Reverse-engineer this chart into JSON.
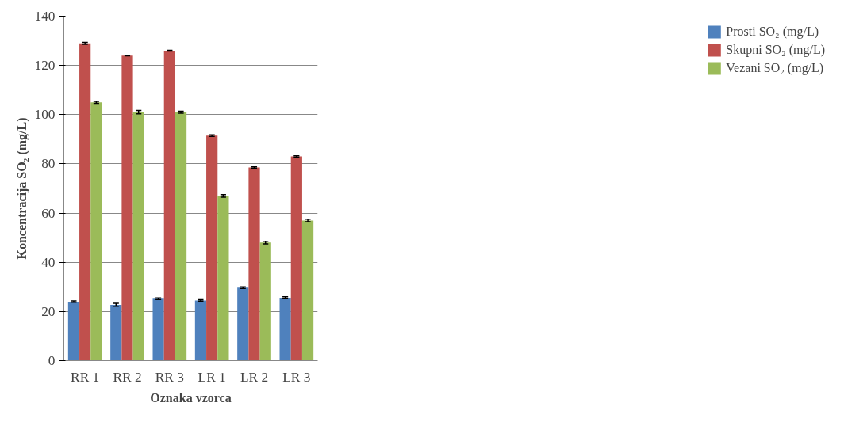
{
  "chart_data": {
    "type": "bar",
    "xlabel": "Oznaka vzorca",
    "ylabel": "Koncentracija SO₂ (mg/L)",
    "categories": [
      "RR 1",
      "RR 2",
      "RR 3",
      "LR 1",
      "LR 2",
      "LR 3"
    ],
    "series": [
      {
        "name": "Prosti SO₂ (mg/L)",
        "color": "#4f81bd",
        "values": [
          24,
          22.7,
          25.2,
          24.5,
          29.7,
          25.6
        ],
        "errors": [
          0.3,
          0.6,
          0.3,
          0.3,
          0.3,
          0.4
        ]
      },
      {
        "name": "Skupni SO₂ (mg/L)",
        "color": "#c0504d",
        "values": [
          129,
          124,
          126,
          91.5,
          78.5,
          83
        ],
        "errors": [
          0.4,
          0.1,
          0.2,
          0.3,
          0.3,
          0.3
        ]
      },
      {
        "name": "Vezani SO₂ (mg/L)",
        "color": "#9bbb59",
        "values": [
          105,
          101,
          101,
          67,
          48,
          57
        ],
        "errors": [
          0.4,
          0.7,
          0.4,
          0.5,
          0.5,
          0.5
        ]
      }
    ],
    "ylim": [
      0,
      140
    ],
    "yticks": [
      0,
      20,
      40,
      60,
      80,
      100,
      120,
      140
    ],
    "grid": "y",
    "legend": "right"
  }
}
